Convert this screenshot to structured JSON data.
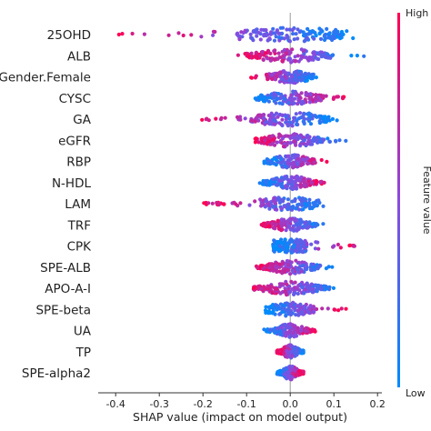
{
  "chart_data": {
    "type": "scatter",
    "subtype": "shap-summary-beeswarm",
    "xlabel": "SHAP value (impact on model output)",
    "xlim": [
      -0.44,
      0.21
    ],
    "xticks": [
      -0.4,
      -0.3,
      -0.2,
      -0.1,
      0.0,
      0.1,
      0.2
    ],
    "xtick_labels": [
      "-0.4",
      "-0.3",
      "-0.2",
      "-0.1",
      "0.0",
      "0.1",
      "0.2"
    ],
    "features": [
      "25OHD",
      "ALB",
      "Gender.Female",
      "CYSC",
      "GA",
      "eGFR",
      "RBP",
      "N-HDL",
      "LAM",
      "TRF",
      "CPK",
      "SPE-ALB",
      "APO-A-I",
      "SPE-beta",
      "UA",
      "TP",
      "SPE-alpha2"
    ],
    "shap_ranges": [
      {
        "feature": "25OHD",
        "min": -0.41,
        "max": 0.15,
        "high_value_side": "negative"
      },
      {
        "feature": "ALB",
        "min": -0.12,
        "max": 0.17,
        "high_value_side": "negative"
      },
      {
        "feature": "Gender.Female",
        "min": -0.09,
        "max": 0.06,
        "high_value_side": "negative"
      },
      {
        "feature": "CYSC",
        "min": -0.09,
        "max": 0.13,
        "high_value_side": "positive"
      },
      {
        "feature": "GA",
        "min": -0.21,
        "max": 0.11,
        "high_value_side": "negative"
      },
      {
        "feature": "eGFR",
        "min": -0.09,
        "max": 0.13,
        "high_value_side": "negative"
      },
      {
        "feature": "RBP",
        "min": -0.06,
        "max": 0.09,
        "high_value_side": "positive"
      },
      {
        "feature": "N-HDL",
        "min": -0.07,
        "max": 0.09,
        "high_value_side": "positive"
      },
      {
        "feature": "LAM",
        "min": -0.2,
        "max": 0.08,
        "high_value_side": "negative"
      },
      {
        "feature": "TRF",
        "min": -0.07,
        "max": 0.08,
        "high_value_side": "negative"
      },
      {
        "feature": "CPK",
        "min": -0.04,
        "max": 0.17,
        "high_value_side": "positive"
      },
      {
        "feature": "SPE-ALB",
        "min": -0.08,
        "max": 0.1,
        "high_value_side": "negative"
      },
      {
        "feature": "APO-A-I",
        "min": -0.1,
        "max": 0.13,
        "high_value_side": "negative"
      },
      {
        "feature": "SPE-beta",
        "min": -0.06,
        "max": 0.13,
        "high_value_side": "positive"
      },
      {
        "feature": "UA",
        "min": -0.06,
        "max": 0.06,
        "high_value_side": "positive"
      },
      {
        "feature": "TP",
        "min": -0.03,
        "max": 0.03,
        "high_value_side": "negative"
      },
      {
        "feature": "SPE-alpha2",
        "min": -0.03,
        "max": 0.03,
        "high_value_side": "positive"
      }
    ],
    "colorbar": {
      "high_label": "High",
      "low_label": "Low",
      "title": "Feature value",
      "high_color": "#ff0052",
      "low_color": "#008bfb"
    },
    "grid": false,
    "legend": "colorbar-right"
  }
}
